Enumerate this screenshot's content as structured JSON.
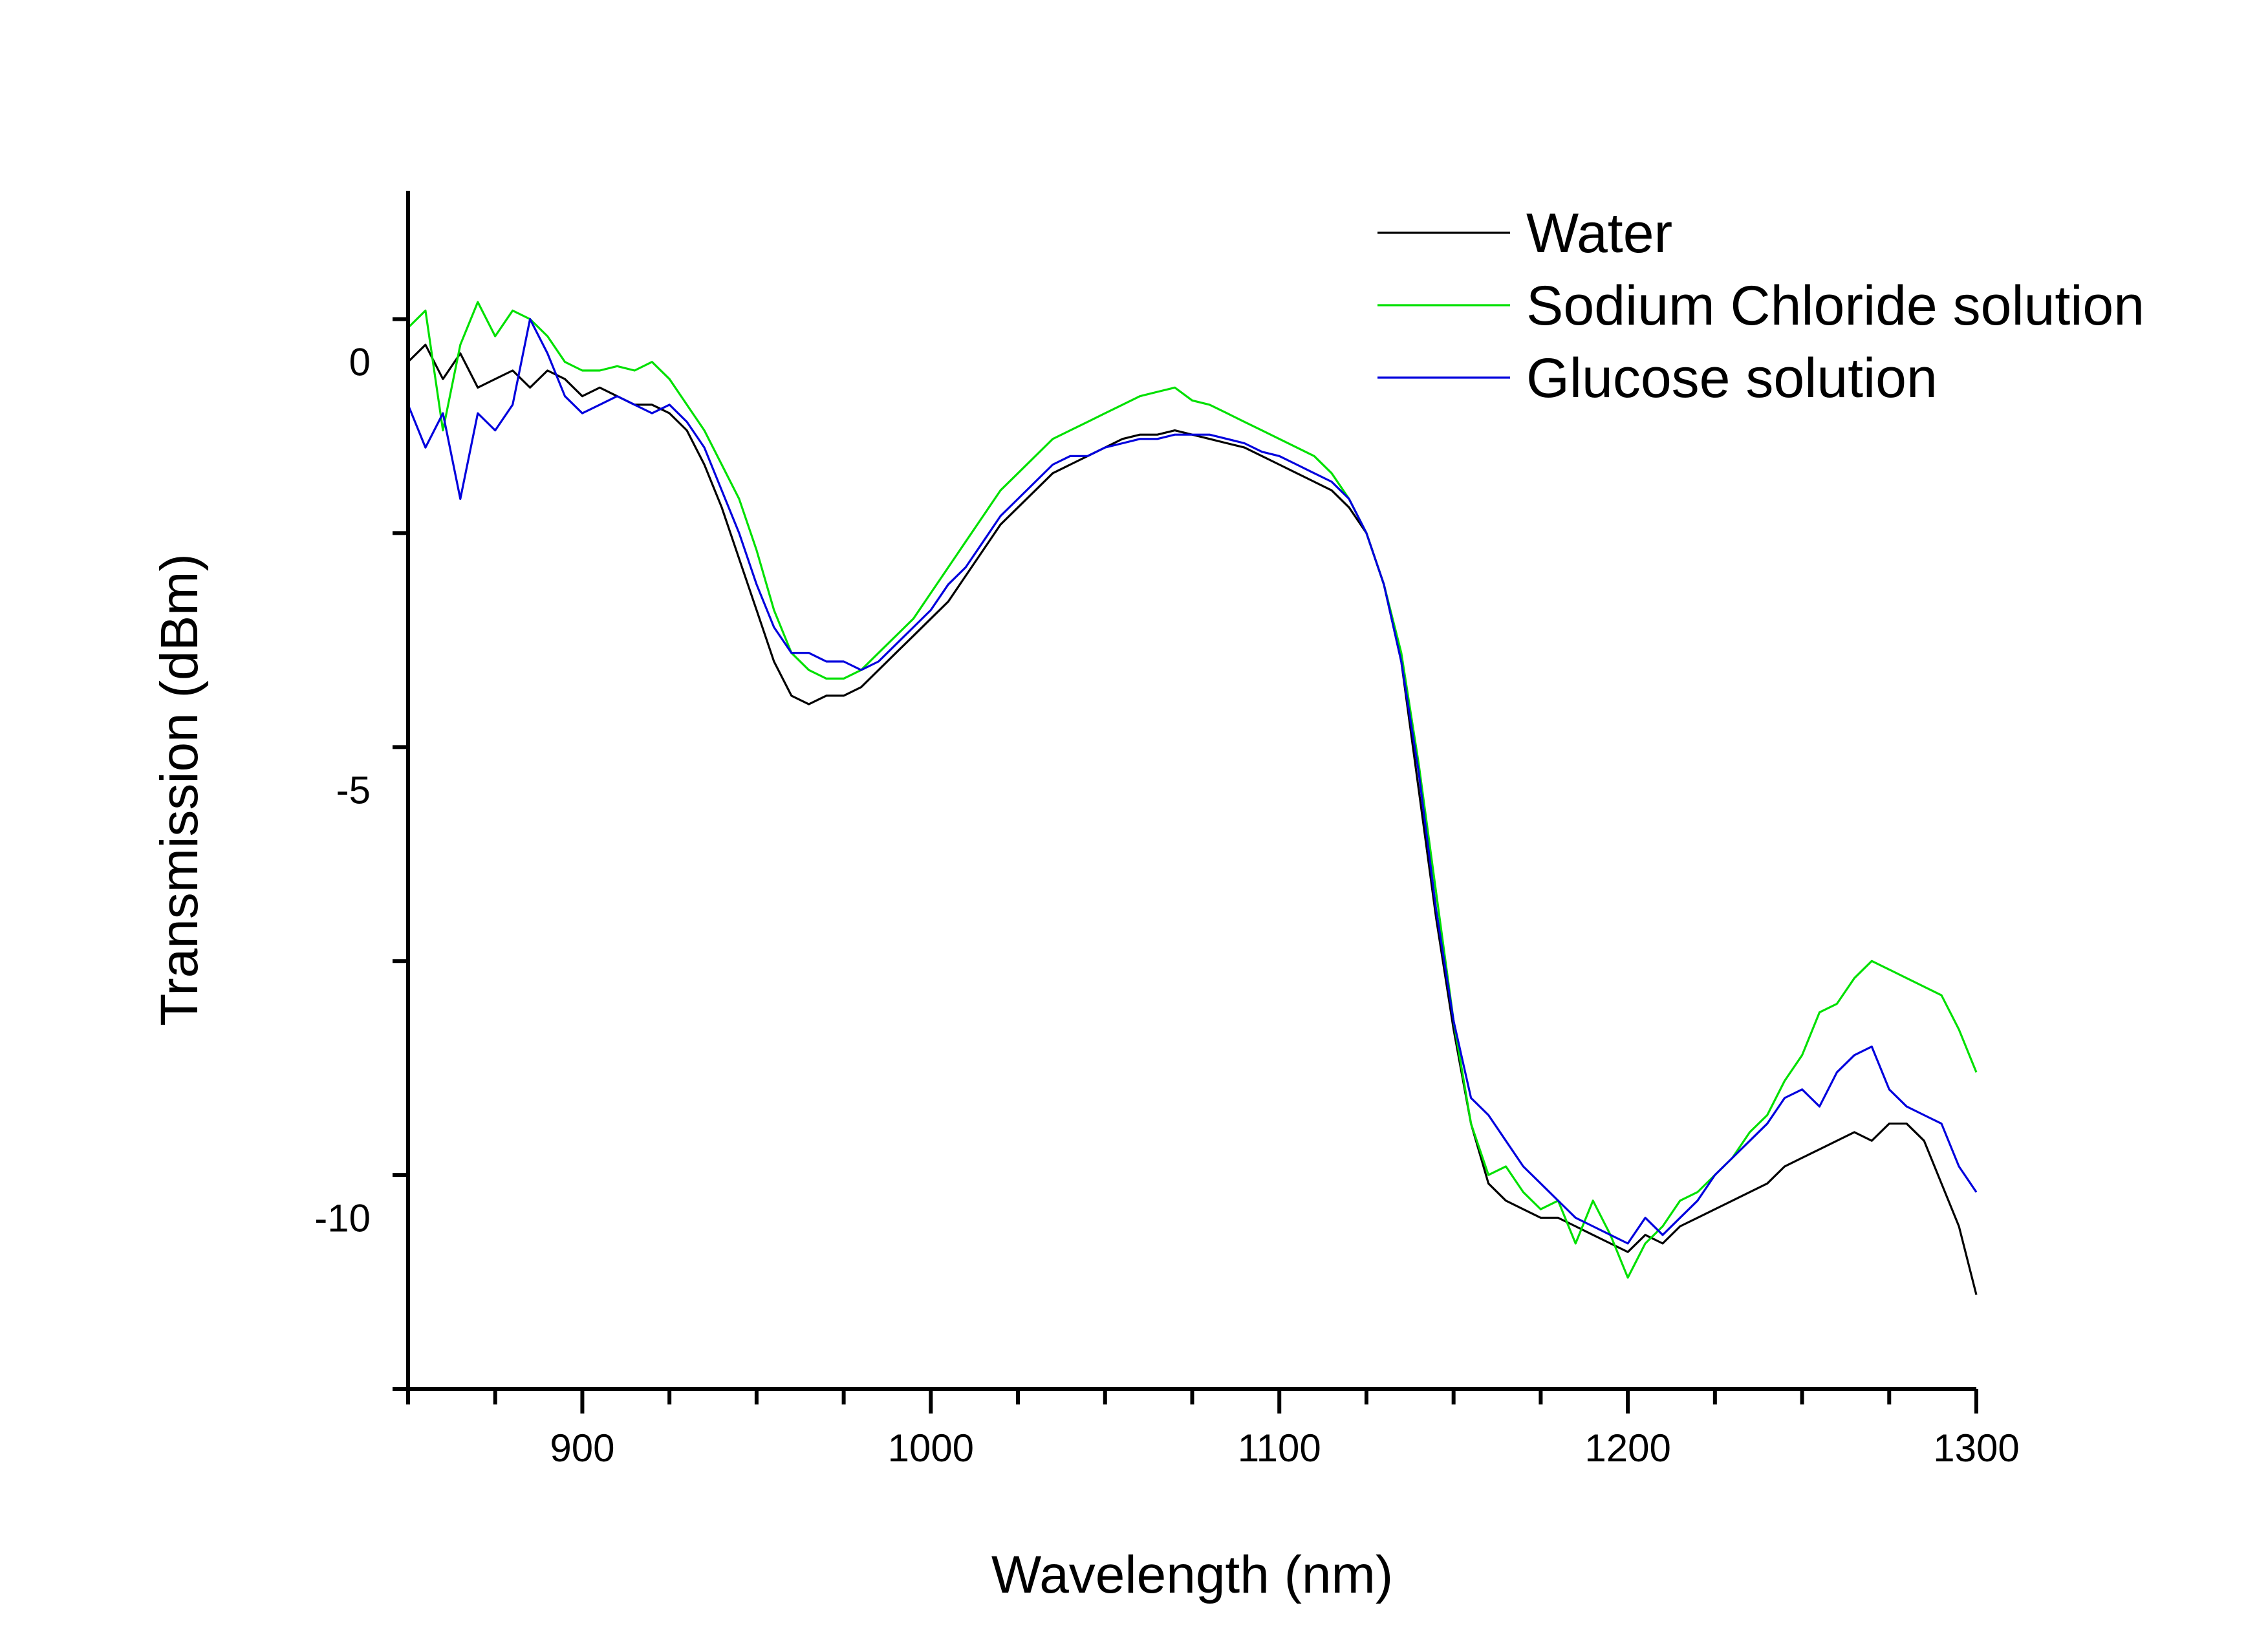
{
  "chart_data": {
    "type": "line",
    "title": "",
    "xlabel": "Wavelength (nm)",
    "ylabel": "Transmission (dBm)",
    "xlim": [
      850,
      1300
    ],
    "ylim": [
      -12,
      2
    ],
    "xticks": [
      900,
      1000,
      1100,
      1200,
      1300
    ],
    "xtick_labels": [
      "900",
      "1000",
      "1100",
      "1200",
      "1300"
    ],
    "yticks": [
      0,
      -5,
      -10
    ],
    "ytick_labels": [
      "0",
      "-5",
      "-10"
    ],
    "grid": false,
    "legend_position": "top-right",
    "series": [
      {
        "name": "Water",
        "color": "#000000",
        "x": [
          850,
          855,
          860,
          865,
          870,
          875,
          880,
          885,
          890,
          895,
          900,
          905,
          910,
          915,
          920,
          925,
          930,
          935,
          940,
          945,
          950,
          955,
          960,
          965,
          970,
          975,
          980,
          985,
          990,
          995,
          1000,
          1005,
          1010,
          1015,
          1020,
          1025,
          1030,
          1035,
          1040,
          1045,
          1050,
          1055,
          1060,
          1065,
          1070,
          1075,
          1080,
          1085,
          1090,
          1095,
          1100,
          1105,
          1110,
          1115,
          1120,
          1125,
          1130,
          1135,
          1140,
          1145,
          1150,
          1155,
          1160,
          1165,
          1170,
          1175,
          1180,
          1185,
          1190,
          1195,
          1200,
          1205,
          1210,
          1215,
          1220,
          1225,
          1230,
          1235,
          1240,
          1245,
          1250,
          1255,
          1260,
          1265,
          1270,
          1275,
          1280,
          1285,
          1290,
          1295,
          1300
        ],
        "y": [
          0.0,
          0.2,
          -0.2,
          0.1,
          -0.3,
          -0.2,
          -0.1,
          -0.3,
          -0.1,
          -0.2,
          -0.4,
          -0.3,
          -0.4,
          -0.5,
          -0.5,
          -0.6,
          -0.8,
          -1.2,
          -1.7,
          -2.3,
          -2.9,
          -3.5,
          -3.9,
          -4.0,
          -3.9,
          -3.9,
          -3.8,
          -3.6,
          -3.4,
          -3.2,
          -3.0,
          -2.8,
          -2.5,
          -2.2,
          -1.9,
          -1.7,
          -1.5,
          -1.3,
          -1.2,
          -1.1,
          -1.0,
          -0.9,
          -0.85,
          -0.85,
          -0.8,
          -0.85,
          -0.9,
          -0.95,
          -1.0,
          -1.1,
          -1.2,
          -1.3,
          -1.4,
          -1.5,
          -1.7,
          -2.0,
          -2.6,
          -3.5,
          -5.0,
          -6.5,
          -7.8,
          -8.9,
          -9.6,
          -9.8,
          -9.9,
          -10.0,
          -10.0,
          -10.1,
          -10.2,
          -10.3,
          -10.4,
          -10.2,
          -10.3,
          -10.1,
          -10.0,
          -9.9,
          -9.8,
          -9.7,
          -9.6,
          -9.4,
          -9.3,
          -9.2,
          -9.1,
          -9.0,
          -9.1,
          -8.9,
          -8.9,
          -9.1,
          -9.6,
          -10.1,
          -10.9
        ]
      },
      {
        "name": "Sodium Chloride solution",
        "color": "#00e000",
        "x": [
          850,
          855,
          860,
          865,
          870,
          875,
          880,
          885,
          890,
          895,
          900,
          905,
          910,
          915,
          920,
          925,
          930,
          935,
          940,
          945,
          950,
          955,
          960,
          965,
          970,
          975,
          980,
          985,
          990,
          995,
          1000,
          1005,
          1010,
          1015,
          1020,
          1025,
          1030,
          1035,
          1040,
          1045,
          1050,
          1055,
          1060,
          1065,
          1070,
          1075,
          1080,
          1085,
          1090,
          1095,
          1100,
          1105,
          1110,
          1115,
          1120,
          1125,
          1130,
          1135,
          1140,
          1145,
          1150,
          1155,
          1160,
          1165,
          1170,
          1175,
          1180,
          1185,
          1190,
          1195,
          1200,
          1205,
          1210,
          1215,
          1220,
          1225,
          1230,
          1235,
          1240,
          1245,
          1250,
          1255,
          1260,
          1265,
          1270,
          1275,
          1280,
          1285,
          1290,
          1295,
          1300
        ],
        "y": [
          0.4,
          0.6,
          -0.8,
          0.2,
          0.7,
          0.3,
          0.6,
          0.5,
          0.3,
          0.0,
          -0.1,
          -0.1,
          -0.05,
          -0.1,
          0.0,
          -0.2,
          -0.5,
          -0.8,
          -1.2,
          -1.6,
          -2.2,
          -2.9,
          -3.4,
          -3.6,
          -3.7,
          -3.7,
          -3.6,
          -3.4,
          -3.2,
          -3.0,
          -2.7,
          -2.4,
          -2.1,
          -1.8,
          -1.5,
          -1.3,
          -1.1,
          -0.9,
          -0.8,
          -0.7,
          -0.6,
          -0.5,
          -0.4,
          -0.35,
          -0.3,
          -0.45,
          -0.5,
          -0.6,
          -0.7,
          -0.8,
          -0.9,
          -1.0,
          -1.1,
          -1.3,
          -1.6,
          -2.0,
          -2.6,
          -3.4,
          -4.7,
          -6.2,
          -7.7,
          -8.9,
          -9.5,
          -9.4,
          -9.7,
          -9.9,
          -9.8,
          -10.3,
          -9.8,
          -10.2,
          -10.7,
          -10.3,
          -10.1,
          -9.8,
          -9.7,
          -9.5,
          -9.3,
          -9.0,
          -8.8,
          -8.4,
          -8.1,
          -7.6,
          -7.5,
          -7.2,
          -7.0,
          -7.1,
          -7.2,
          -7.3,
          -7.4,
          -7.8,
          -8.3
        ]
      },
      {
        "name": "Glucose solution",
        "color": "#0000dd",
        "x": [
          850,
          855,
          860,
          865,
          870,
          875,
          880,
          885,
          890,
          895,
          900,
          905,
          910,
          915,
          920,
          925,
          930,
          935,
          940,
          945,
          950,
          955,
          960,
          965,
          970,
          975,
          980,
          985,
          990,
          995,
          1000,
          1005,
          1010,
          1015,
          1020,
          1025,
          1030,
          1035,
          1040,
          1045,
          1050,
          1055,
          1060,
          1065,
          1070,
          1075,
          1080,
          1085,
          1090,
          1095,
          1100,
          1105,
          1110,
          1115,
          1120,
          1125,
          1130,
          1135,
          1140,
          1145,
          1150,
          1155,
          1160,
          1165,
          1170,
          1175,
          1180,
          1185,
          1190,
          1195,
          1200,
          1205,
          1210,
          1215,
          1220,
          1225,
          1230,
          1235,
          1240,
          1245,
          1250,
          1255,
          1260,
          1265,
          1270,
          1275,
          1280,
          1285,
          1290,
          1295,
          1300
        ],
        "y": [
          -0.5,
          -1.0,
          -0.6,
          -1.6,
          -0.6,
          -0.8,
          -0.5,
          0.5,
          0.1,
          -0.4,
          -0.6,
          -0.5,
          -0.4,
          -0.5,
          -0.6,
          -0.5,
          -0.7,
          -1.0,
          -1.5,
          -2.0,
          -2.6,
          -3.1,
          -3.4,
          -3.4,
          -3.5,
          -3.5,
          -3.6,
          -3.5,
          -3.3,
          -3.1,
          -2.9,
          -2.6,
          -2.4,
          -2.1,
          -1.8,
          -1.6,
          -1.4,
          -1.2,
          -1.1,
          -1.1,
          -1.0,
          -0.95,
          -0.9,
          -0.9,
          -0.85,
          -0.85,
          -0.85,
          -0.9,
          -0.95,
          -1.05,
          -1.1,
          -1.2,
          -1.3,
          -1.4,
          -1.6,
          -2.0,
          -2.6,
          -3.5,
          -4.8,
          -6.4,
          -7.7,
          -8.6,
          -8.8,
          -9.1,
          -9.4,
          -9.6,
          -9.8,
          -10.0,
          -10.1,
          -10.2,
          -10.3,
          -10.0,
          -10.2,
          -10.0,
          -9.8,
          -9.5,
          -9.3,
          -9.1,
          -8.9,
          -8.6,
          -8.5,
          -8.7,
          -8.3,
          -8.1,
          -8.0,
          -8.5,
          -8.7,
          -8.8,
          -8.9,
          -9.4,
          -9.7
        ]
      }
    ]
  }
}
